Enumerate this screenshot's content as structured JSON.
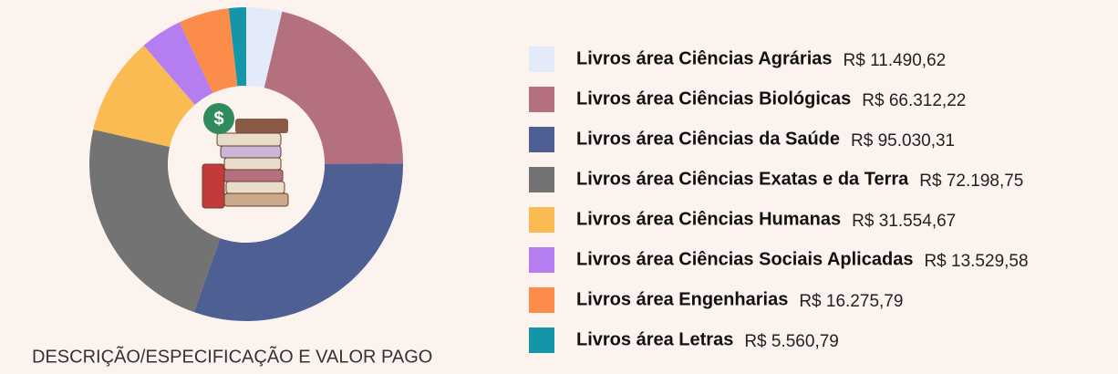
{
  "chart_data": {
    "type": "donut",
    "title": "DESCRIÇÃO/ESPECIFICAÇÃO E VALOR PAGO",
    "categories": [
      "Livros área Ciências Agrárias",
      "Livros área Ciências Biológicas",
      "Livros área Ciências da Saúde",
      "Livros área Ciências Exatas e da Terra",
      "Livros área Ciências Humanas",
      "Livros área Ciências Sociais Aplicadas",
      "Livros área Engenharias",
      "Livros área Letras"
    ],
    "values": [
      11490.62,
      66312.22,
      95030.31,
      72198.75,
      31554.67,
      13529.58,
      16275.79,
      5560.79
    ],
    "value_labels": [
      "R$ 11.490,62",
      "R$ 66.312,22",
      "R$ 95.030,31",
      "R$ 72.198,75",
      "R$ 31.554,67",
      "R$ 13.529,58",
      "R$ 16.275,79",
      "R$ 5.560,79"
    ],
    "colors": [
      "#e3ebfa",
      "#b5707f",
      "#4e5f94",
      "#737373",
      "#fbbb53",
      "#b57ef0",
      "#fc8c4a",
      "#1596a8"
    ]
  }
}
